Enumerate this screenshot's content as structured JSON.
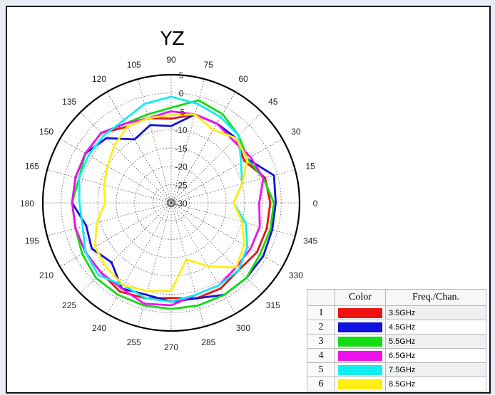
{
  "chart_data": {
    "type": "polar-line",
    "title": "YZ",
    "angle_ticks": [
      "0",
      "15",
      "30",
      "45",
      "60",
      "75",
      "90",
      "105",
      "120",
      "135",
      "150",
      "165",
      "180",
      "195",
      "210",
      "225",
      "240",
      "255",
      "270",
      "285",
      "300",
      "315",
      "330",
      "345"
    ],
    "radial_ticks": [
      "5",
      "0",
      "-5",
      "-10",
      "-15",
      "-20",
      "-25",
      "-30"
    ],
    "rlim": [
      -30,
      5
    ],
    "grid": true,
    "legend_headers": {
      "index": "",
      "color": "Color",
      "freq": "Freq./Chan."
    },
    "series": [
      {
        "index": "1",
        "name": "3.5GHz",
        "color": "#ee1111",
        "angles": [
          0,
          15,
          30,
          45,
          60,
          75,
          90,
          105,
          120,
          135,
          150,
          165,
          180,
          195,
          210,
          225,
          240,
          255,
          270,
          285,
          300,
          315,
          330,
          345
        ],
        "values": [
          -3,
          -3.5,
          -7,
          -5,
          -5,
          -5,
          -7,
          -6,
          -6,
          -3,
          -3,
          -3,
          -3,
          -3,
          -3,
          -3,
          -2,
          -3,
          -4,
          -3,
          -3,
          -4,
          -3,
          -3
        ]
      },
      {
        "index": "2",
        "name": "4.5GHz",
        "color": "#1111dd",
        "angles": [
          0,
          15,
          30,
          45,
          60,
          75,
          90,
          105,
          120,
          135,
          150,
          165,
          180,
          195,
          210,
          225,
          240,
          255,
          270,
          285,
          300,
          315,
          330,
          345
        ],
        "values": [
          -1.5,
          -1,
          -6,
          -5,
          -5,
          -5,
          -9,
          -8,
          -10,
          -5,
          -3,
          -3,
          -3,
          -6,
          -5,
          -7,
          -3,
          -4,
          -3,
          -3,
          -1,
          -1,
          -1,
          -1.5
        ]
      },
      {
        "index": "3",
        "name": "5.5GHz",
        "color": "#11dd11",
        "angles": [
          0,
          15,
          30,
          45,
          60,
          75,
          90,
          105,
          120,
          135,
          150,
          165,
          180,
          195,
          210,
          225,
          240,
          255,
          270,
          285,
          300,
          315,
          330,
          345
        ],
        "values": [
          -2,
          -4,
          -6,
          -4,
          -2,
          -1,
          -4,
          -5,
          -5,
          -3,
          -3,
          -4,
          -3,
          -3,
          -2,
          -1,
          -1,
          -1,
          -1,
          -1,
          -1,
          -1,
          -2,
          -2
        ]
      },
      {
        "index": "4",
        "name": "6.5GHz",
        "color": "#ee11ee",
        "angles": [
          0,
          15,
          30,
          45,
          60,
          75,
          90,
          105,
          120,
          135,
          150,
          165,
          180,
          195,
          210,
          225,
          240,
          255,
          270,
          285,
          300,
          315,
          330,
          345
        ],
        "values": [
          -6,
          -4,
          -5,
          -6,
          -5,
          -5,
          -5,
          -6,
          -5,
          -3,
          -3,
          -3,
          -3,
          -3,
          -3,
          -3,
          -3,
          -1.5,
          -2,
          -4,
          -4,
          -5,
          -5,
          -5
        ]
      },
      {
        "index": "5",
        "name": "7.5GHz",
        "color": "#11eeee",
        "angles": [
          0,
          15,
          30,
          45,
          60,
          75,
          90,
          105,
          120,
          135,
          150,
          165,
          180,
          195,
          210,
          225,
          240,
          255,
          270,
          285,
          300,
          315,
          330,
          345
        ],
        "values": [
          -13,
          -10,
          -8,
          -4,
          -3,
          -2,
          -1,
          -2,
          -4,
          -4,
          -4,
          -4,
          -5,
          -5,
          -3,
          -2,
          -4,
          -3,
          -3,
          -4,
          -4,
          -4,
          -6,
          -9
        ]
      },
      {
        "index": "6",
        "name": "8.5GHz",
        "color": "#ffee11",
        "angles": [
          0,
          15,
          30,
          45,
          60,
          75,
          90,
          105,
          120,
          135,
          150,
          165,
          180,
          195,
          210,
          225,
          240,
          255,
          270,
          285,
          300,
          315,
          330,
          345
        ],
        "values": [
          -13,
          -10,
          -6,
          -5,
          -7,
          -5,
          -6,
          -6,
          -6,
          -8,
          -10,
          -11,
          -12,
          -9,
          -6,
          -5,
          -4,
          -5,
          -6,
          -14,
          -10,
          -5,
          -7,
          -10
        ]
      }
    ]
  }
}
